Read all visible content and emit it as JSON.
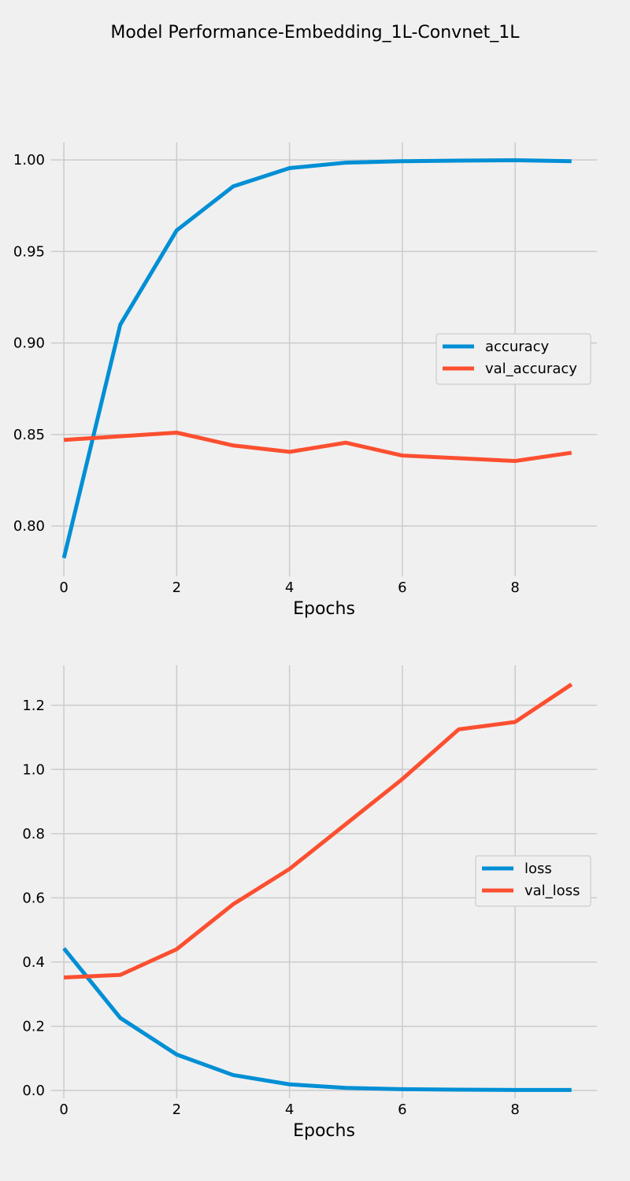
{
  "title": "Model Performance-Embedding_1L-Convnet_1L",
  "colors": {
    "background": "#f0f0f0",
    "grid": "#cbcbcb",
    "series_1": "#008fd5",
    "series_2": "#fc4f30"
  },
  "chart_data": [
    {
      "type": "line",
      "title": "",
      "xlabel": "Epochs",
      "ylabel": "",
      "x": [
        0,
        1,
        2,
        3,
        4,
        5,
        6,
        7,
        8,
        9
      ],
      "xlim": [
        -0.225,
        9.45
      ],
      "ylim": [
        0.7725,
        1.0095
      ],
      "xticks": [
        0,
        2,
        4,
        6,
        8
      ],
      "xtick_labels": [
        "0",
        "2",
        "4",
        "6",
        "8"
      ],
      "yticks": [
        0.8,
        0.85,
        0.9,
        0.95,
        1.0
      ],
      "ytick_labels": [
        "0.80",
        "0.85",
        "0.90",
        "0.95",
        "1.00"
      ],
      "grid": true,
      "legend": "center-right",
      "series": [
        {
          "name": "accuracy",
          "color": "#008fd5",
          "values": [
            0.7825,
            0.91,
            0.9615,
            0.9855,
            0.9955,
            0.9985,
            0.9993,
            0.9996,
            0.9998,
            0.9993
          ]
        },
        {
          "name": "val_accuracy",
          "color": "#fc4f30",
          "values": [
            0.847,
            0.849,
            0.851,
            0.844,
            0.8405,
            0.8455,
            0.8385,
            0.837,
            0.8355,
            0.84
          ]
        }
      ]
    },
    {
      "type": "line",
      "title": "",
      "xlabel": "Epochs",
      "ylabel": "",
      "x": [
        0,
        1,
        2,
        3,
        4,
        5,
        6,
        7,
        8,
        9
      ],
      "xlim": [
        -0.225,
        9.45
      ],
      "ylim": [
        -0.0245,
        1.3245
      ],
      "xticks": [
        0,
        2,
        4,
        6,
        8
      ],
      "xtick_labels": [
        "0",
        "2",
        "4",
        "6",
        "8"
      ],
      "yticks": [
        0.0,
        0.2,
        0.4,
        0.6,
        0.8,
        1.0,
        1.2
      ],
      "ytick_labels": [
        "0.0",
        "0.2",
        "0.4",
        "0.6",
        "0.8",
        "1.0",
        "1.2"
      ],
      "grid": true,
      "legend": "center-right",
      "series": [
        {
          "name": "loss",
          "color": "#008fd5",
          "values": [
            0.4425,
            0.226,
            0.112,
            0.048,
            0.019,
            0.008,
            0.004,
            0.0025,
            0.0015,
            0.0015
          ]
        },
        {
          "name": "val_loss",
          "color": "#fc4f30",
          "values": [
            0.352,
            0.36,
            0.44,
            0.58,
            0.69,
            0.83,
            0.97,
            1.125,
            1.148,
            1.265
          ]
        }
      ]
    }
  ]
}
